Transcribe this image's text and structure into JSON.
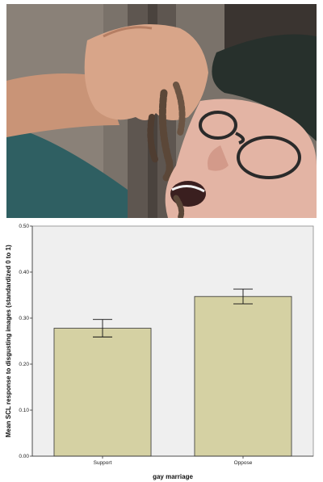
{
  "photo": {
    "description_icon": "photo-icon"
  },
  "chart_data": {
    "type": "bar",
    "categories": [
      "Support",
      "Oppose"
    ],
    "values": [
      0.278,
      0.347
    ],
    "error_low": [
      0.259,
      0.331
    ],
    "error_high": [
      0.297,
      0.363
    ],
    "xlabel": "gay marriage",
    "ylabel": "Mean SCL response to disgusting images (standardized 0 to 1)",
    "ylim": [
      0,
      0.5
    ],
    "yticks": [
      "0.00",
      "0.10",
      "0.20",
      "0.30",
      "0.40",
      "0.50"
    ],
    "grid": false,
    "legend": "none",
    "colors": {
      "bar_fill": "#d5d1a3",
      "bar_stroke": "#333333",
      "plot_background": "#efefef"
    }
  }
}
